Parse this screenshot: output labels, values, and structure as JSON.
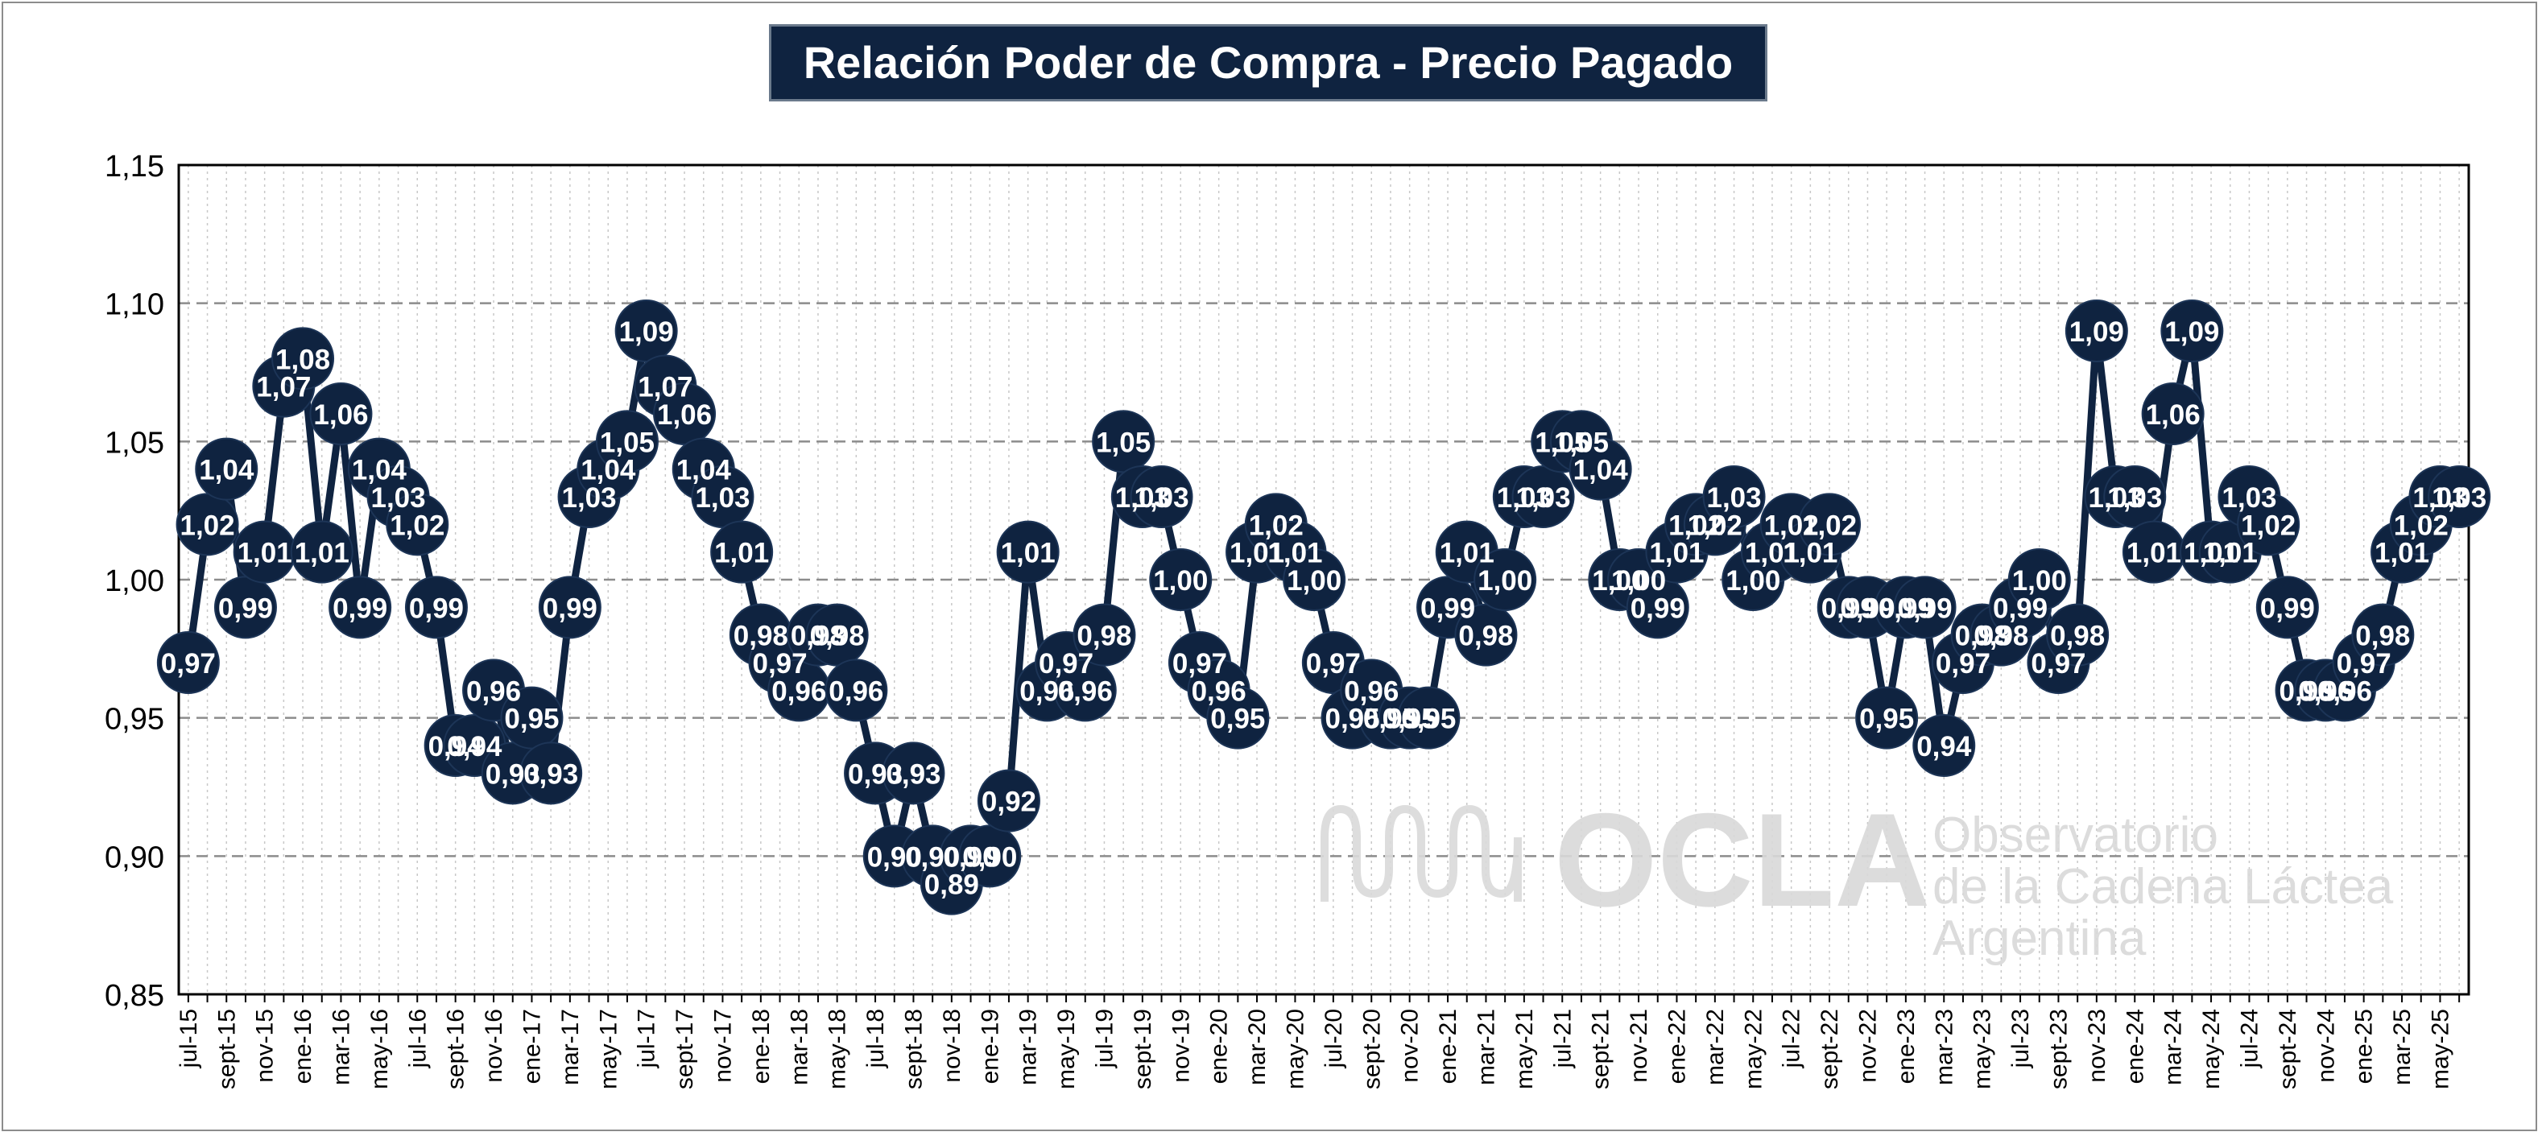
{
  "chart_data": {
    "type": "line",
    "title": "Relación Poder de Compra - Precio Pagado",
    "xlabel": "",
    "ylabel": "",
    "ylim": [
      0.85,
      1.15
    ],
    "y_ticks": [
      "0,85",
      "0,90",
      "0,95",
      "1,00",
      "1,05",
      "1,10",
      "1,15"
    ],
    "grid": "horizontal dashed major, vertical dotted per month",
    "x": [
      "jul-15",
      "ago-15",
      "sept-15",
      "oct-15",
      "nov-15",
      "dic-15",
      "ene-16",
      "feb-16",
      "mar-16",
      "abr-16",
      "may-16",
      "jun-16",
      "jul-16",
      "ago-16",
      "sept-16",
      "oct-16",
      "nov-16",
      "dic-16",
      "ene-17",
      "feb-17",
      "mar-17",
      "abr-17",
      "may-17",
      "jun-17",
      "jul-17",
      "ago-17",
      "sept-17",
      "oct-17",
      "nov-17",
      "dic-17",
      "ene-18",
      "feb-18",
      "mar-18",
      "abr-18",
      "may-18",
      "jun-18",
      "jul-18",
      "ago-18",
      "sept-18",
      "oct-18",
      "nov-18",
      "dic-18",
      "ene-19",
      "feb-19",
      "mar-19",
      "abr-19",
      "may-19",
      "jun-19",
      "jul-19",
      "ago-19",
      "sept-19",
      "oct-19",
      "nov-19",
      "dic-19",
      "ene-20",
      "feb-20",
      "mar-20",
      "abr-20",
      "may-20",
      "jun-20",
      "jul-20",
      "ago-20",
      "sept-20",
      "oct-20",
      "nov-20",
      "dic-20",
      "ene-21",
      "feb-21",
      "mar-21",
      "abr-21",
      "may-21",
      "jun-21",
      "jul-21",
      "ago-21",
      "sept-21",
      "oct-21",
      "nov-21",
      "dic-21",
      "ene-22",
      "feb-22",
      "mar-22",
      "abr-22",
      "may-22",
      "jun-22",
      "jul-22",
      "ago-22",
      "sept-22",
      "oct-22",
      "nov-22",
      "dic-22",
      "ene-23",
      "feb-23",
      "mar-23",
      "abr-23",
      "may-23",
      "jun-23",
      "jul-23",
      "ago-23",
      "sept-23",
      "oct-23",
      "nov-23",
      "dic-23",
      "ene-24",
      "feb-24",
      "mar-24",
      "abr-24",
      "may-24",
      "jun-24",
      "jul-24",
      "ago-24",
      "sept-24",
      "oct-24",
      "nov-24",
      "dic-24",
      "ene-25",
      "feb-25",
      "mar-25",
      "abr-25",
      "may-25",
      "jun-25"
    ],
    "x_tick_labels": [
      "jul-15",
      "sept-15",
      "nov-15",
      "ene-16",
      "mar-16",
      "may-16",
      "jul-16",
      "sept-16",
      "nov-16",
      "ene-17",
      "mar-17",
      "may-17",
      "jul-17",
      "sept-17",
      "nov-17",
      "ene-18",
      "mar-18",
      "may-18",
      "jul-18",
      "sept-18",
      "nov-18",
      "ene-19",
      "mar-19",
      "may-19",
      "jul-19",
      "sept-19",
      "nov-19",
      "ene-20",
      "mar-20",
      "may-20",
      "jul-20",
      "sept-20",
      "nov-20",
      "ene-21",
      "mar-21",
      "may-21",
      "jul-21",
      "sept-21",
      "nov-21",
      "ene-22",
      "mar-22",
      "may-22",
      "jul-22",
      "sept-22",
      "nov-22",
      "ene-23",
      "mar-23",
      "may-23",
      "jul-23",
      "sept-23",
      "nov-23",
      "ene-24",
      "mar-24",
      "may-24",
      "jul-24",
      "sept-24",
      "nov-24",
      "ene-25",
      "mar-25",
      "may-25"
    ],
    "series": [
      {
        "values": [
          0.97,
          1.02,
          1.04,
          0.99,
          1.01,
          1.07,
          1.08,
          1.01,
          1.06,
          0.99,
          1.04,
          1.03,
          1.02,
          0.99,
          0.94,
          0.94,
          0.96,
          0.93,
          0.95,
          0.93,
          0.99,
          1.03,
          1.04,
          1.05,
          1.09,
          1.07,
          1.06,
          1.04,
          1.03,
          1.01,
          0.98,
          0.97,
          0.96,
          0.98,
          0.98,
          0.96,
          0.93,
          0.9,
          0.93,
          0.9,
          0.89,
          0.9,
          0.9,
          0.92,
          1.01,
          0.96,
          0.97,
          0.96,
          0.98,
          1.05,
          1.03,
          1.03,
          1.0,
          0.97,
          0.96,
          0.95,
          1.01,
          1.02,
          1.01,
          1.0,
          0.97,
          0.95,
          0.96,
          0.95,
          0.95,
          0.95,
          0.99,
          1.01,
          0.98,
          1.0,
          1.03,
          1.03,
          1.05,
          1.05,
          1.04,
          1.0,
          1.0,
          0.99,
          1.01,
          1.02,
          1.02,
          1.03,
          1.0,
          1.01,
          1.02,
          1.01,
          1.02,
          0.99,
          0.99,
          0.95,
          0.99,
          0.99,
          0.94,
          0.97,
          0.98,
          0.98,
          0.99,
          1.0,
          0.97,
          0.98,
          1.09,
          1.03,
          1.03,
          1.01,
          1.06,
          1.09,
          1.01,
          1.01,
          1.03,
          1.02,
          0.99,
          0.96,
          0.96,
          0.96,
          0.97,
          0.98,
          1.01,
          1.02,
          1.03,
          1.03
        ],
        "labels": [
          "0,97",
          "1,02",
          "1,04",
          "0,99",
          "1,01",
          "1,07",
          "1,08",
          "1,01",
          "1,06",
          "0,99",
          "1,04",
          "1,03",
          "1,02",
          "0,99",
          "0,94",
          "0,94",
          "0,96",
          "0,93",
          "0,95",
          "0,93",
          "0,99",
          "1,03",
          "1,04",
          "1,05",
          "1,09",
          "1,07",
          "1,06",
          "1,04",
          "1,03",
          "1,01",
          "0,98",
          "0,97",
          "0,96",
          "0,98",
          "0,98",
          "0,96",
          "0,93",
          "0,90",
          "0,93",
          "0,90",
          "0,89",
          "0,90",
          "0,90",
          "0,92",
          "1,01",
          "0,96",
          "0,97",
          "0,96",
          "0,98",
          "1,05",
          "1,03",
          "1,03",
          "1,00",
          "0,97",
          "0,96",
          "0,95",
          "1,01",
          "1,02",
          "1,01",
          "1,00",
          "0,97",
          "0,95",
          "0,96",
          "0,95",
          "0,95",
          "0,95",
          "0,99",
          "1,01",
          "0,98",
          "1,00",
          "1,03",
          "1,03",
          "1,05",
          "1,05",
          "1,04",
          "1,00",
          "1,00",
          "0,99",
          "1,01",
          "1,02",
          "1,02",
          "1,03",
          "1,00",
          "1,01",
          "1,02",
          "1,01",
          "1,02",
          "0,99",
          "0,99",
          "0,95",
          "0,99",
          "0,99",
          "0,94",
          "0,97",
          "0,98",
          "0,98",
          "0,99",
          "1,00",
          "0,97",
          "0,98",
          "1,09",
          "1,03",
          "1,03",
          "1,01",
          "1,06",
          "1,09",
          "1,01",
          "1,01",
          "1,03",
          "1,02",
          "0,99",
          "0,96",
          "0,96",
          "0,96",
          "0,97",
          "0,98",
          "1,01",
          "1,02",
          "1,03",
          "1,03"
        ]
      }
    ]
  },
  "watermark": {
    "logo_text": "OCLA",
    "line1": "Observatorio",
    "line2": "de la Cadena Láctea",
    "line3": "Argentina"
  },
  "colors": {
    "series": "#0f2340",
    "title_bg": "#0f2340",
    "watermark": "#d9d9d9"
  }
}
